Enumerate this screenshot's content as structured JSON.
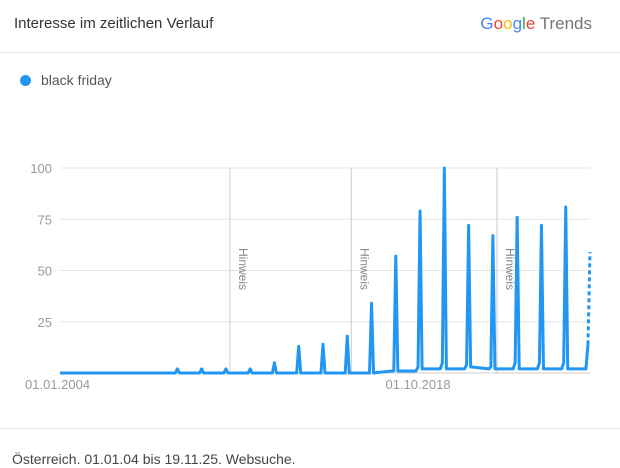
{
  "header": {
    "title": "Interesse im zeitlichen Verlauf",
    "logo": "Google Trends",
    "logo_google": "Google",
    "logo_trends": "Trends"
  },
  "footer": {
    "text": "Österreich. 01.01.04 bis 19.11.25. Websuche."
  },
  "colors": {
    "series": "#2196f3",
    "grid": "#e6e6e6",
    "text": "#999"
  },
  "chart_data": {
    "type": "line",
    "title": "",
    "xlabel": "",
    "ylabel": "",
    "ylim": [
      0,
      100
    ],
    "xlim": [
      "2004-01",
      "2025-11"
    ],
    "yticks": [
      "25",
      "50",
      "75",
      "100"
    ],
    "xticks": [
      {
        "label": "01.01.2004",
        "date": "2004-01"
      },
      {
        "label": "01.10.2018",
        "date": "2018-10"
      }
    ],
    "annotations": [
      {
        "label": "Hinweis",
        "date": "2011-01"
      },
      {
        "label": "Hinweis",
        "date": "2016-01"
      },
      {
        "label": "Hinweis",
        "date": "2022-01"
      }
    ],
    "grid": true,
    "legend": "top-left",
    "series": [
      {
        "name": "black friday",
        "partial_from": "2025-11",
        "points": [
          [
            "2004-01",
            0
          ],
          [
            "2008-10",
            0
          ],
          [
            "2008-11",
            2
          ],
          [
            "2008-12",
            0
          ],
          [
            "2009-10",
            0
          ],
          [
            "2009-11",
            2
          ],
          [
            "2009-12",
            0
          ],
          [
            "2010-10",
            0
          ],
          [
            "2010-11",
            2
          ],
          [
            "2010-12",
            0
          ],
          [
            "2011-10",
            0
          ],
          [
            "2011-11",
            2
          ],
          [
            "2011-12",
            0
          ],
          [
            "2012-10",
            0
          ],
          [
            "2012-11",
            5
          ],
          [
            "2012-12",
            0
          ],
          [
            "2013-10",
            0
          ],
          [
            "2013-11",
            13
          ],
          [
            "2013-12",
            0
          ],
          [
            "2014-10",
            0
          ],
          [
            "2014-11",
            14
          ],
          [
            "2014-12",
            0
          ],
          [
            "2015-10",
            0
          ],
          [
            "2015-11",
            18
          ],
          [
            "2015-12",
            0
          ],
          [
            "2016-10",
            0
          ],
          [
            "2016-11",
            34
          ],
          [
            "2016-12",
            0
          ],
          [
            "2017-09",
            1
          ],
          [
            "2017-10",
            1
          ],
          [
            "2017-11",
            57
          ],
          [
            "2017-12",
            1
          ],
          [
            "2018-09",
            1
          ],
          [
            "2018-10",
            3
          ],
          [
            "2018-11",
            79
          ],
          [
            "2018-12",
            2
          ],
          [
            "2019-09",
            2
          ],
          [
            "2019-10",
            5
          ],
          [
            "2019-11",
            100
          ],
          [
            "2019-12",
            2
          ],
          [
            "2020-09",
            2
          ],
          [
            "2020-10",
            4
          ],
          [
            "2020-11",
            72
          ],
          [
            "2020-12",
            3
          ],
          [
            "2021-09",
            2
          ],
          [
            "2021-10",
            3
          ],
          [
            "2021-11",
            67
          ],
          [
            "2021-12",
            2
          ],
          [
            "2022-09",
            2
          ],
          [
            "2022-10",
            5
          ],
          [
            "2022-11",
            76
          ],
          [
            "2022-12",
            2
          ],
          [
            "2023-09",
            2
          ],
          [
            "2023-10",
            5
          ],
          [
            "2023-11",
            72
          ],
          [
            "2023-12",
            2
          ],
          [
            "2024-09",
            2
          ],
          [
            "2024-10",
            5
          ],
          [
            "2024-11",
            81
          ],
          [
            "2024-12",
            2
          ],
          [
            "2025-09",
            2
          ],
          [
            "2025-10",
            14
          ],
          [
            "2025-11",
            59
          ]
        ]
      }
    ]
  }
}
